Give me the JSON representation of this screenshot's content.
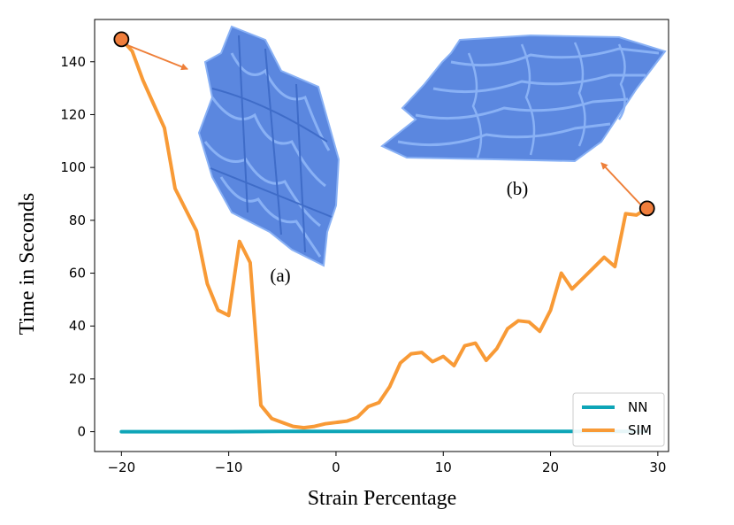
{
  "chart_data": {
    "type": "line",
    "title": "",
    "xlabel": "Strain Percentage",
    "ylabel": "Time in Seconds",
    "xlim": [
      -22.5,
      31
    ],
    "ylim": [
      -7.5,
      156
    ],
    "xticks": [
      -20,
      -10,
      0,
      10,
      20,
      30
    ],
    "yticks": [
      0,
      20,
      40,
      60,
      80,
      100,
      120,
      140
    ],
    "xtick_labels": [
      "−20",
      "−10",
      "0",
      "10",
      "20",
      "30"
    ],
    "ytick_labels": [
      "0",
      "20",
      "40",
      "60",
      "80",
      "100",
      "120",
      "140"
    ],
    "legend_position": "lower-right",
    "series": [
      {
        "name": "NN",
        "color": "#0ea5b7",
        "x": [
          -20,
          -15,
          -10,
          -5,
          0,
          5,
          10,
          15,
          20,
          25,
          29
        ],
        "y": [
          0,
          0,
          0,
          0.1,
          0.1,
          0.1,
          0.1,
          0.1,
          0.1,
          0.1,
          0.1
        ]
      },
      {
        "name": "SIM",
        "color": "#f89a36",
        "x": [
          -20,
          -19,
          -18,
          -17,
          -16,
          -15,
          -14,
          -13,
          -12,
          -11,
          -10,
          -9,
          -8,
          -7,
          -6,
          -5,
          -4,
          -3,
          -2,
          -1,
          0,
          1,
          2,
          3,
          4,
          5,
          6,
          7,
          8,
          9,
          10,
          11,
          12,
          13,
          14,
          15,
          16,
          17,
          18,
          19,
          20,
          21,
          22,
          23,
          24,
          25,
          26,
          27,
          28,
          29
        ],
        "y": [
          148.5,
          144,
          133,
          124,
          115,
          92,
          84,
          76,
          56,
          46,
          44,
          72,
          64,
          10,
          5,
          3.5,
          2,
          1.5,
          2,
          3,
          3.5,
          4,
          5.5,
          9.5,
          11,
          17,
          26,
          29.5,
          30,
          26.5,
          28.5,
          25,
          32.5,
          33.5,
          27,
          31.5,
          39,
          42,
          41.5,
          38,
          46,
          60,
          54,
          58,
          62,
          66,
          62.5,
          82.5,
          82,
          84.5
        ]
      }
    ],
    "highlight_points": [
      {
        "x": -20,
        "y": 148.5
      },
      {
        "x": 29,
        "y": 84.5
      }
    ],
    "annotations": [
      {
        "label": "(a)",
        "anchor_x": -20,
        "anchor_y": 148.5
      },
      {
        "label": "(b)",
        "anchor_x": 29,
        "anchor_y": 84.5
      }
    ],
    "marker_color": "#f07e3c",
    "arrow_color": "#ee7f39",
    "structure_color": "#5b87df",
    "structure_edge_color": "#89b1f5"
  }
}
